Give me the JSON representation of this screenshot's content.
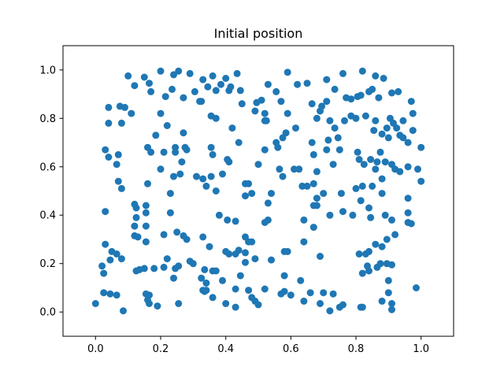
{
  "chart_data": {
    "type": "scatter",
    "title": "Initial position",
    "xlabel": "",
    "ylabel": "",
    "xlim": [
      -0.1,
      1.1
    ],
    "ylim": [
      -0.1,
      1.1
    ],
    "xticks": [
      "0.0",
      "0.2",
      "0.4",
      "0.6",
      "0.8",
      "1.0"
    ],
    "yticks": [
      "0.0",
      "0.2",
      "0.4",
      "0.6",
      "0.8",
      "1.0"
    ],
    "grid": false,
    "marker_color": "#1f77b4",
    "points": [
      [
        0.1,
        0.975
      ],
      [
        0.15,
        0.97
      ],
      [
        0.165,
        0.945
      ],
      [
        0.2,
        0.995
      ],
      [
        0.24,
        0.98
      ],
      [
        0.255,
        0.995
      ],
      [
        0.29,
        0.985
      ],
      [
        0.33,
        0.96
      ],
      [
        0.36,
        0.975
      ],
      [
        0.4,
        0.965
      ],
      [
        0.415,
        0.93
      ],
      [
        0.435,
        0.985
      ],
      [
        0.53,
        0.94
      ],
      [
        0.555,
        0.91
      ],
      [
        0.59,
        0.99
      ],
      [
        0.62,
        0.94
      ],
      [
        0.65,
        0.945
      ],
      [
        0.71,
        0.96
      ],
      [
        0.76,
        0.985
      ],
      [
        0.82,
        0.995
      ],
      [
        0.86,
        0.975
      ],
      [
        0.885,
        0.965
      ],
      [
        0.91,
        0.905
      ],
      [
        0.93,
        0.91
      ],
      [
        0.12,
        0.935
      ],
      [
        0.17,
        0.91
      ],
      [
        0.215,
        0.89
      ],
      [
        0.235,
        0.92
      ],
      [
        0.27,
        0.885
      ],
      [
        0.305,
        0.91
      ],
      [
        0.325,
        0.87
      ],
      [
        0.345,
        0.93
      ],
      [
        0.37,
        0.915
      ],
      [
        0.385,
        0.94
      ],
      [
        0.41,
        0.915
      ],
      [
        0.445,
        0.915
      ],
      [
        0.495,
        0.865
      ],
      [
        0.51,
        0.875
      ],
      [
        0.57,
        0.87
      ],
      [
        0.665,
        0.86
      ],
      [
        0.695,
        0.85
      ],
      [
        0.71,
        0.87
      ],
      [
        0.735,
        0.92
      ],
      [
        0.77,
        0.885
      ],
      [
        0.785,
        0.88
      ],
      [
        0.805,
        0.89
      ],
      [
        0.815,
        0.895
      ],
      [
        0.84,
        0.91
      ],
      [
        0.85,
        0.92
      ],
      [
        0.87,
        0.885
      ],
      [
        0.04,
        0.845
      ],
      [
        0.075,
        0.85
      ],
      [
        0.09,
        0.845
      ],
      [
        0.11,
        0.82
      ],
      [
        0.2,
        0.82
      ],
      [
        0.32,
        0.87
      ],
      [
        0.355,
        0.81
      ],
      [
        0.37,
        0.8
      ],
      [
        0.45,
        0.86
      ],
      [
        0.49,
        0.83
      ],
      [
        0.52,
        0.82
      ],
      [
        0.525,
        0.79
      ],
      [
        0.59,
        0.82
      ],
      [
        0.615,
        0.76
      ],
      [
        0.68,
        0.8
      ],
      [
        0.69,
        0.83
      ],
      [
        0.72,
        0.79
      ],
      [
        0.785,
        0.81
      ],
      [
        0.8,
        0.8
      ],
      [
        0.83,
        0.81
      ],
      [
        0.86,
        0.79
      ],
      [
        0.895,
        0.76
      ],
      [
        0.905,
        0.8
      ],
      [
        0.915,
        0.78
      ],
      [
        0.925,
        0.76
      ],
      [
        0.945,
        0.79
      ],
      [
        0.97,
        0.87
      ],
      [
        0.975,
        0.82
      ],
      [
        0.04,
        0.78
      ],
      [
        0.08,
        0.78
      ],
      [
        0.185,
        0.73
      ],
      [
        0.22,
        0.77
      ],
      [
        0.27,
        0.74
      ],
      [
        0.42,
        0.76
      ],
      [
        0.52,
        0.79
      ],
      [
        0.555,
        0.7
      ],
      [
        0.575,
        0.72
      ],
      [
        0.585,
        0.74
      ],
      [
        0.665,
        0.7
      ],
      [
        0.715,
        0.71
      ],
      [
        0.735,
        0.76
      ],
      [
        0.745,
        0.72
      ],
      [
        0.765,
        0.79
      ],
      [
        0.855,
        0.75
      ],
      [
        0.88,
        0.735
      ],
      [
        0.9,
        0.72
      ],
      [
        0.935,
        0.73
      ],
      [
        0.945,
        0.72
      ],
      [
        0.96,
        0.7
      ],
      [
        0.975,
        0.75
      ],
      [
        1.0,
        0.68
      ],
      [
        0.03,
        0.67
      ],
      [
        0.04,
        0.64
      ],
      [
        0.065,
        0.61
      ],
      [
        0.07,
        0.65
      ],
      [
        0.16,
        0.68
      ],
      [
        0.17,
        0.66
      ],
      [
        0.21,
        0.66
      ],
      [
        0.245,
        0.66
      ],
      [
        0.245,
        0.68
      ],
      [
        0.265,
        0.62
      ],
      [
        0.275,
        0.68
      ],
      [
        0.28,
        0.67
      ],
      [
        0.355,
        0.68
      ],
      [
        0.36,
        0.65
      ],
      [
        0.39,
        0.57
      ],
      [
        0.405,
        0.63
      ],
      [
        0.41,
        0.62
      ],
      [
        0.44,
        0.7
      ],
      [
        0.5,
        0.61
      ],
      [
        0.52,
        0.67
      ],
      [
        0.56,
        0.68
      ],
      [
        0.565,
        0.59
      ],
      [
        0.575,
        0.56
      ],
      [
        0.625,
        0.59
      ],
      [
        0.635,
        0.52
      ],
      [
        0.67,
        0.65
      ],
      [
        0.68,
        0.58
      ],
      [
        0.71,
        0.67
      ],
      [
        0.73,
        0.61
      ],
      [
        0.75,
        0.67
      ],
      [
        0.805,
        0.66
      ],
      [
        0.81,
        0.63
      ],
      [
        0.825,
        0.61
      ],
      [
        0.845,
        0.63
      ],
      [
        0.86,
        0.59
      ],
      [
        0.865,
        0.62
      ],
      [
        0.875,
        0.66
      ],
      [
        0.89,
        0.62
      ],
      [
        0.91,
        0.61
      ],
      [
        0.92,
        0.59
      ],
      [
        0.935,
        0.58
      ],
      [
        0.96,
        0.6
      ],
      [
        0.99,
        0.59
      ],
      [
        0.07,
        0.54
      ],
      [
        0.08,
        0.51
      ],
      [
        0.16,
        0.53
      ],
      [
        0.2,
        0.59
      ],
      [
        0.24,
        0.56
      ],
      [
        0.26,
        0.57
      ],
      [
        0.31,
        0.56
      ],
      [
        0.33,
        0.55
      ],
      [
        0.34,
        0.52
      ],
      [
        0.355,
        0.56
      ],
      [
        0.37,
        0.5
      ],
      [
        0.46,
        0.53
      ],
      [
        0.47,
        0.53
      ],
      [
        0.48,
        0.49
      ],
      [
        0.54,
        0.49
      ],
      [
        0.61,
        0.59
      ],
      [
        0.65,
        0.52
      ],
      [
        0.67,
        0.53
      ],
      [
        0.68,
        0.47
      ],
      [
        0.7,
        0.49
      ],
      [
        0.755,
        0.49
      ],
      [
        0.8,
        0.51
      ],
      [
        0.82,
        0.52
      ],
      [
        0.85,
        0.52
      ],
      [
        0.88,
        0.55
      ],
      [
        0.88,
        0.49
      ],
      [
        0.96,
        0.47
      ],
      [
        1.0,
        0.54
      ],
      [
        0.03,
        0.415
      ],
      [
        0.125,
        0.43
      ],
      [
        0.12,
        0.445
      ],
      [
        0.155,
        0.44
      ],
      [
        0.155,
        0.41
      ],
      [
        0.125,
        0.39
      ],
      [
        0.12,
        0.355
      ],
      [
        0.155,
        0.355
      ],
      [
        0.23,
        0.49
      ],
      [
        0.23,
        0.41
      ],
      [
        0.38,
        0.4
      ],
      [
        0.405,
        0.38
      ],
      [
        0.43,
        0.375
      ],
      [
        0.46,
        0.48
      ],
      [
        0.53,
        0.45
      ],
      [
        0.53,
        0.38
      ],
      [
        0.64,
        0.38
      ],
      [
        0.67,
        0.35
      ],
      [
        0.67,
        0.44
      ],
      [
        0.68,
        0.44
      ],
      [
        0.72,
        0.4
      ],
      [
        0.76,
        0.415
      ],
      [
        0.79,
        0.4
      ],
      [
        0.815,
        0.46
      ],
      [
        0.84,
        0.43
      ],
      [
        0.845,
        0.39
      ],
      [
        0.89,
        0.4
      ],
      [
        0.91,
        0.38
      ],
      [
        0.96,
        0.41
      ],
      [
        0.96,
        0.37
      ],
      [
        0.97,
        0.365
      ],
      [
        0.03,
        0.28
      ],
      [
        0.12,
        0.315
      ],
      [
        0.13,
        0.31
      ],
      [
        0.155,
        0.29
      ],
      [
        0.21,
        0.32
      ],
      [
        0.25,
        0.33
      ],
      [
        0.27,
        0.315
      ],
      [
        0.28,
        0.3
      ],
      [
        0.33,
        0.31
      ],
      [
        0.35,
        0.27
      ],
      [
        0.4,
        0.25
      ],
      [
        0.43,
        0.24
      ],
      [
        0.44,
        0.255
      ],
      [
        0.46,
        0.31
      ],
      [
        0.47,
        0.29
      ],
      [
        0.48,
        0.29
      ],
      [
        0.52,
        0.37
      ],
      [
        0.58,
        0.25
      ],
      [
        0.59,
        0.25
      ],
      [
        0.64,
        0.29
      ],
      [
        0.69,
        0.23
      ],
      [
        0.81,
        0.24
      ],
      [
        0.83,
        0.24
      ],
      [
        0.84,
        0.25
      ],
      [
        0.86,
        0.28
      ],
      [
        0.88,
        0.27
      ],
      [
        0.895,
        0.3
      ],
      [
        0.92,
        0.32
      ],
      [
        0.02,
        0.19
      ],
      [
        0.025,
        0.16
      ],
      [
        0.045,
        0.215
      ],
      [
        0.05,
        0.25
      ],
      [
        0.065,
        0.24
      ],
      [
        0.08,
        0.22
      ],
      [
        0.125,
        0.17
      ],
      [
        0.135,
        0.175
      ],
      [
        0.15,
        0.18
      ],
      [
        0.18,
        0.18
      ],
      [
        0.21,
        0.185
      ],
      [
        0.22,
        0.22
      ],
      [
        0.24,
        0.14
      ],
      [
        0.245,
        0.18
      ],
      [
        0.255,
        0.19
      ],
      [
        0.29,
        0.21
      ],
      [
        0.3,
        0.2
      ],
      [
        0.325,
        0.14
      ],
      [
        0.335,
        0.175
      ],
      [
        0.34,
        0.12
      ],
      [
        0.36,
        0.17
      ],
      [
        0.37,
        0.17
      ],
      [
        0.39,
        0.13
      ],
      [
        0.41,
        0.24
      ],
      [
        0.445,
        0.15
      ],
      [
        0.46,
        0.205
      ],
      [
        0.46,
        0.245
      ],
      [
        0.49,
        0.22
      ],
      [
        0.54,
        0.215
      ],
      [
        0.58,
        0.15
      ],
      [
        0.63,
        0.13
      ],
      [
        0.82,
        0.16
      ],
      [
        0.835,
        0.19
      ],
      [
        0.84,
        0.17
      ],
      [
        0.865,
        0.185
      ],
      [
        0.875,
        0.2
      ],
      [
        0.895,
        0.2
      ],
      [
        0.91,
        0.195
      ],
      [
        0.0,
        0.035
      ],
      [
        0.025,
        0.08
      ],
      [
        0.045,
        0.075
      ],
      [
        0.065,
        0.07
      ],
      [
        0.085,
        0.005
      ],
      [
        0.155,
        0.075
      ],
      [
        0.16,
        0.05
      ],
      [
        0.165,
        0.07
      ],
      [
        0.165,
        0.035
      ],
      [
        0.19,
        0.025
      ],
      [
        0.255,
        0.035
      ],
      [
        0.33,
        0.09
      ],
      [
        0.335,
        0.085
      ],
      [
        0.34,
        0.09
      ],
      [
        0.36,
        0.06
      ],
      [
        0.4,
        0.035
      ],
      [
        0.43,
        0.02
      ],
      [
        0.43,
        0.095
      ],
      [
        0.47,
        0.09
      ],
      [
        0.48,
        0.06
      ],
      [
        0.49,
        0.045
      ],
      [
        0.5,
        0.03
      ],
      [
        0.52,
        0.095
      ],
      [
        0.57,
        0.075
      ],
      [
        0.58,
        0.085
      ],
      [
        0.6,
        0.07
      ],
      [
        0.64,
        0.045
      ],
      [
        0.66,
        0.08
      ],
      [
        0.69,
        0.035
      ],
      [
        0.7,
        0.08
      ],
      [
        0.72,
        0.005
      ],
      [
        0.75,
        0.02
      ],
      [
        0.76,
        0.03
      ],
      [
        0.73,
        0.075
      ],
      [
        0.815,
        0.02
      ],
      [
        0.82,
        0.02
      ],
      [
        0.88,
        0.045
      ],
      [
        0.9,
        0.13
      ],
      [
        0.9,
        0.08
      ],
      [
        0.91,
        0.035
      ],
      [
        0.91,
        0.01
      ],
      [
        0.985,
        0.1
      ]
    ]
  }
}
